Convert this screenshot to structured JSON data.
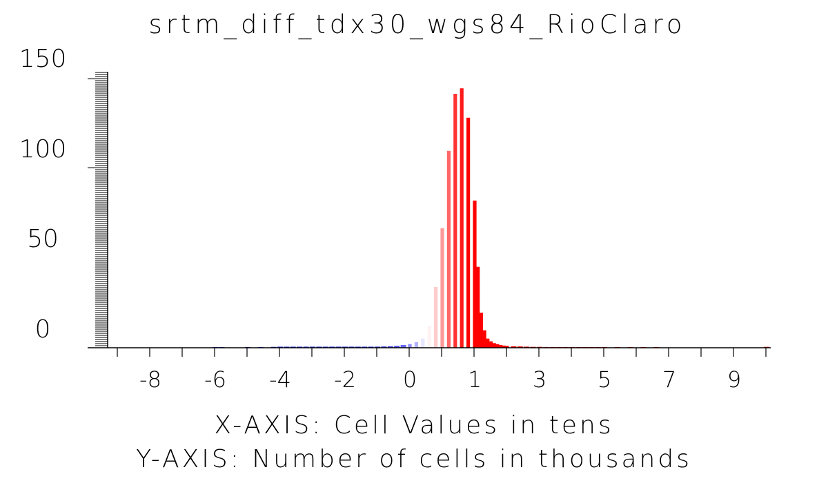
{
  "chart_data": {
    "type": "bar",
    "title": "srtm_diff_tdx30_wgs84_RioClaro",
    "xlabel": "X-AXIS: Cell Values in tens",
    "ylabel": "Y-AXIS: Number of cells in thousands",
    "x_tick_labels": [
      "-8",
      "-6",
      "-4",
      "-2",
      "0",
      "1",
      "3",
      "5",
      "7",
      "9"
    ],
    "y_tick_labels": [
      "150",
      "100",
      "50",
      "0"
    ],
    "ylim": [
      0,
      150
    ],
    "colormap": {
      "negative": "#0000ff",
      "zero": "#ffffff",
      "positive": "#ff0000"
    },
    "bins": [
      {
        "label": "-6.0",
        "value": 0.3,
        "tone": -0.8
      },
      {
        "label": "-5.8",
        "value": 0.3,
        "tone": -0.8
      },
      {
        "label": "-5.0",
        "value": 0.3,
        "tone": -0.8
      },
      {
        "label": "-4.6",
        "value": 0.4,
        "tone": -0.8
      },
      {
        "label": "-4.2",
        "value": 0.5,
        "tone": -0.8
      },
      {
        "label": "-4.0",
        "value": 0.6,
        "tone": -0.8
      },
      {
        "label": "-3.8",
        "value": 0.6,
        "tone": -0.8
      },
      {
        "label": "-3.6",
        "value": 0.6,
        "tone": -0.8
      },
      {
        "label": "-3.4",
        "value": 0.6,
        "tone": -0.8
      },
      {
        "label": "-3.2",
        "value": 0.6,
        "tone": -0.8
      },
      {
        "label": "-3.0",
        "value": 0.6,
        "tone": -0.8
      },
      {
        "label": "-2.8",
        "value": 0.6,
        "tone": -0.8
      },
      {
        "label": "-2.6",
        "value": 0.6,
        "tone": -0.8
      },
      {
        "label": "-2.4",
        "value": 0.6,
        "tone": -0.8
      },
      {
        "label": "-2.2",
        "value": 0.6,
        "tone": -0.8
      },
      {
        "label": "-2.0",
        "value": 0.6,
        "tone": -0.8
      },
      {
        "label": "-1.8",
        "value": 0.6,
        "tone": -0.8
      },
      {
        "label": "-1.6",
        "value": 0.6,
        "tone": -0.8
      },
      {
        "label": "-1.4",
        "value": 0.6,
        "tone": -0.8
      },
      {
        "label": "-1.2",
        "value": 0.6,
        "tone": -0.8
      },
      {
        "label": "-1.0",
        "value": 0.6,
        "tone": -0.8
      },
      {
        "label": "-0.8",
        "value": 0.7,
        "tone": -0.75
      },
      {
        "label": "-0.6",
        "value": 0.8,
        "tone": -0.75
      },
      {
        "label": "-0.4",
        "value": 1.0,
        "tone": -0.7
      },
      {
        "label": "-0.2",
        "value": 1.5,
        "tone": -0.6
      },
      {
        "label": "0.0",
        "value": 2.0,
        "tone": -0.45
      },
      {
        "label": "0.1",
        "value": 3.0,
        "tone": -0.3
      },
      {
        "label": "0.2",
        "value": 5.0,
        "tone": -0.1
      },
      {
        "label": "0.3",
        "value": 12.0,
        "tone": 0.05
      },
      {
        "label": "0.4",
        "value": 33.0,
        "tone": 0.2
      },
      {
        "label": "0.5",
        "value": 65.0,
        "tone": 0.4
      },
      {
        "label": "0.6",
        "value": 107.0,
        "tone": 0.6
      },
      {
        "label": "0.7",
        "value": 138.0,
        "tone": 0.8
      },
      {
        "label": "0.8",
        "value": 141.0,
        "tone": 0.9
      },
      {
        "label": "0.9",
        "value": 125.0,
        "tone": 1.0
      },
      {
        "label": "1.0",
        "value": 80.0,
        "tone": 1.0
      },
      {
        "label": "1.1",
        "value": 44.0,
        "tone": 1.0
      },
      {
        "label": "1.2",
        "value": 19.0,
        "tone": 1.0
      },
      {
        "label": "1.3",
        "value": 9.5,
        "tone": 1.0
      },
      {
        "label": "1.4",
        "value": 5.0,
        "tone": 1.0
      },
      {
        "label": "1.5",
        "value": 3.5,
        "tone": 1.0
      },
      {
        "label": "1.6",
        "value": 2.5,
        "tone": 1.0
      },
      {
        "label": "1.7",
        "value": 2.0,
        "tone": 1.0
      },
      {
        "label": "1.8",
        "value": 1.5,
        "tone": 1.0
      },
      {
        "label": "1.9",
        "value": 1.2,
        "tone": 1.0
      },
      {
        "label": "2.0",
        "value": 1.0,
        "tone": 1.0
      },
      {
        "label": "2.2",
        "value": 0.8,
        "tone": 1.0
      },
      {
        "label": "2.4",
        "value": 0.7,
        "tone": 1.0
      },
      {
        "label": "2.6",
        "value": 0.6,
        "tone": 1.0
      },
      {
        "label": "2.8",
        "value": 0.5,
        "tone": 1.0
      },
      {
        "label": "3.0",
        "value": 0.5,
        "tone": 1.0
      },
      {
        "label": "3.2",
        "value": 0.4,
        "tone": 1.0
      },
      {
        "label": "3.4",
        "value": 0.4,
        "tone": 1.0
      },
      {
        "label": "3.6",
        "value": 0.4,
        "tone": 1.0
      },
      {
        "label": "3.8",
        "value": 0.4,
        "tone": 1.0
      },
      {
        "label": "4.0",
        "value": 0.4,
        "tone": 1.0
      },
      {
        "label": "4.2",
        "value": 0.3,
        "tone": 1.0
      },
      {
        "label": "4.4",
        "value": 0.3,
        "tone": 1.0
      },
      {
        "label": "4.6",
        "value": 0.3,
        "tone": 1.0
      },
      {
        "label": "4.8",
        "value": 0.3,
        "tone": 1.0
      },
      {
        "label": "5.0",
        "value": 0.3,
        "tone": 1.0
      },
      {
        "label": "5.4",
        "value": 0.3,
        "tone": 1.0
      },
      {
        "label": "5.8",
        "value": 0.3,
        "tone": 1.0
      },
      {
        "label": "6.2",
        "value": 0.3,
        "tone": 1.0
      },
      {
        "label": "6.6",
        "value": 0.3,
        "tone": 1.0
      },
      {
        "label": "10.0",
        "value": 0.5,
        "tone": 1.0
      }
    ]
  }
}
